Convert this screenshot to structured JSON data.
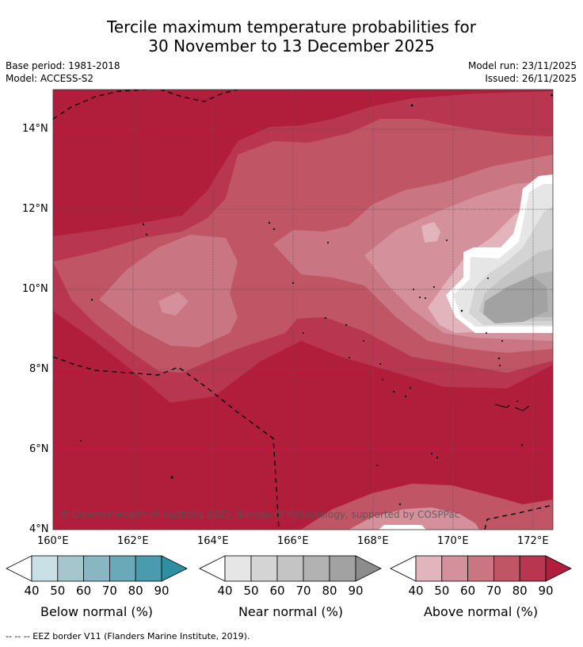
{
  "title": {
    "line1": "Tercile maximum temperature probabilities for",
    "line2": "30 November to 13 December 2025"
  },
  "meta": {
    "base_period": "Base period: 1981-2018",
    "model": "Model: ACCESS-S2",
    "model_run": "Model run: 23/11/2025",
    "issued": "Issued: 26/11/2025"
  },
  "map": {
    "copyright": "© Commonwealth of Australia 2025, Bureau of Meteorology, supported by COSPPac",
    "lat_labels": [
      "14°N",
      "12°N",
      "10°N",
      "8°N",
      "6°N",
      "4°N"
    ],
    "lon_labels": [
      "160°E",
      "162°E",
      "164°E",
      "166°E",
      "168°E",
      "170°E",
      "172°E"
    ]
  },
  "legends": [
    {
      "title": "Below normal (%)",
      "ticks": [
        "40",
        "50",
        "60",
        "70",
        "80",
        "90"
      ],
      "colors": [
        "#ffffff",
        "#c9e1e6",
        "#a4c6cc",
        "#88b6c1",
        "#6aa9b7",
        "#4a9bae",
        "#2e8fa3"
      ]
    },
    {
      "title": "Near normal (%)",
      "ticks": [
        "40",
        "50",
        "60",
        "70",
        "80",
        "90"
      ],
      "colors": [
        "#ffffff",
        "#e6e6e6",
        "#d4d4d4",
        "#c4c4c4",
        "#b2b2b2",
        "#a2a2a2",
        "#8c8c8c"
      ]
    },
    {
      "title": "Above normal (%)",
      "ticks": [
        "40",
        "50",
        "60",
        "70",
        "80",
        "90"
      ],
      "colors": [
        "#ffffff",
        "#e2b4bb",
        "#d5919b",
        "#c97682",
        "#c05566",
        "#b83650",
        "#b01e3c"
      ]
    }
  ],
  "footer": "--  --  -- EEZ border V11 (Flanders Marine Institute, 2019)."
}
